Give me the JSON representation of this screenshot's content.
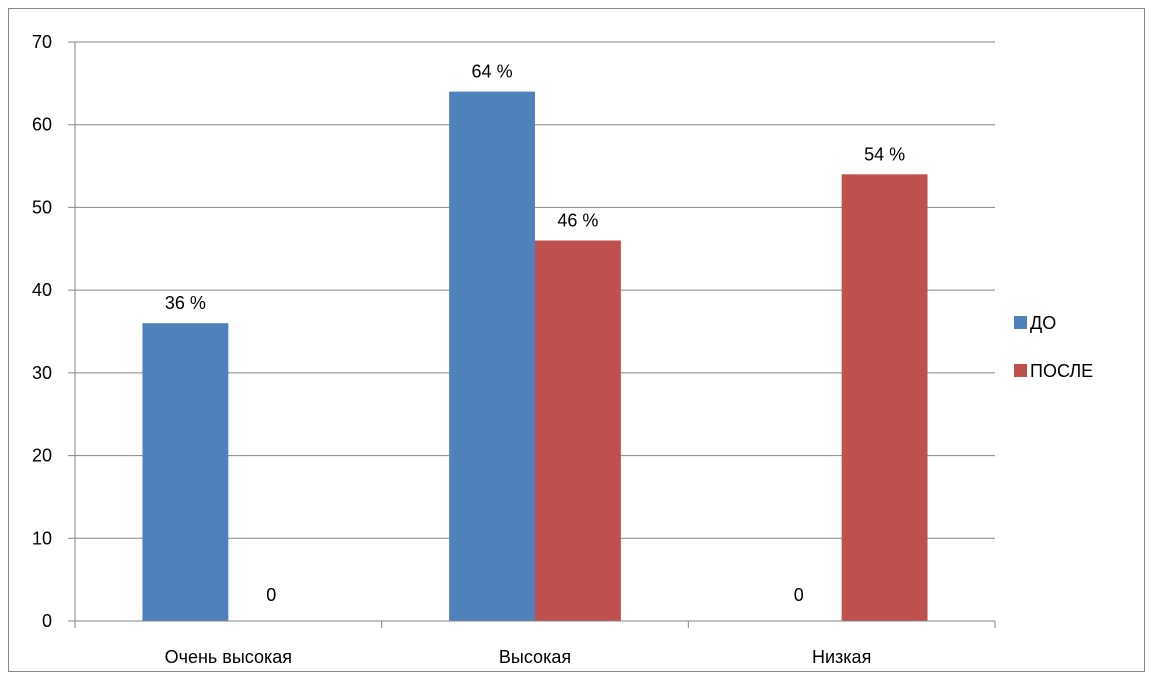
{
  "chart_data": {
    "type": "bar",
    "categories": [
      "Очень высокая",
      "Высокая",
      "Низкая"
    ],
    "series": [
      {
        "name": "ДО",
        "color": "#4F81BD",
        "values": [
          36,
          64,
          0
        ],
        "labels": [
          "36 %",
          "64 %",
          "0"
        ]
      },
      {
        "name": "ПОСЛЕ",
        "color": "#C0504D",
        "values": [
          0,
          46,
          54
        ],
        "labels": [
          "0",
          "46 %",
          "54 %"
        ]
      }
    ],
    "ylim": [
      0,
      70
    ],
    "yticks": [
      0,
      10,
      20,
      30,
      40,
      50,
      60,
      70
    ],
    "grid": true,
    "legend": "right"
  }
}
